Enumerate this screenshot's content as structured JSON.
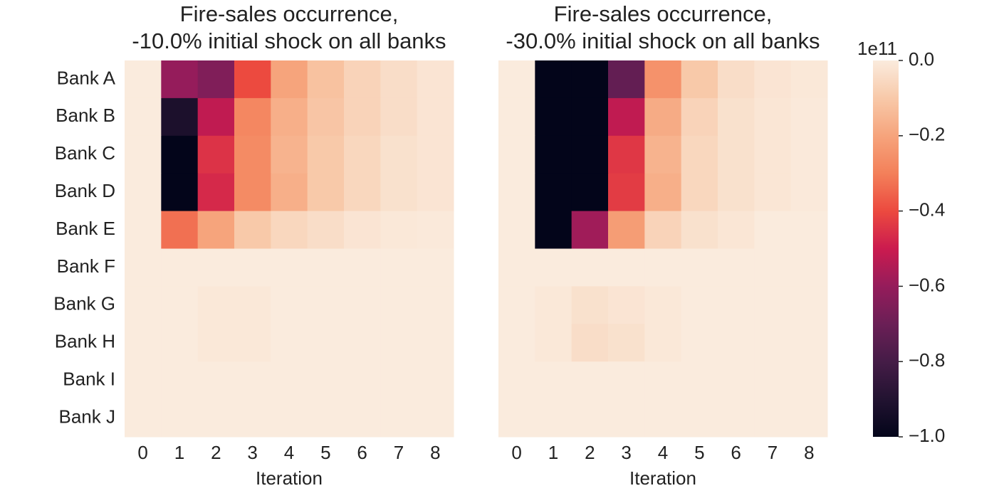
{
  "chart_data": [
    {
      "type": "heatmap",
      "title": [
        "Fire-sales occurrence,",
        "-10.0% initial shock on all banks"
      ],
      "xlabel": "Iteration",
      "x": [
        0,
        1,
        2,
        3,
        4,
        5,
        6,
        7,
        8
      ],
      "y": [
        "Bank A",
        "Bank B",
        "Bank C",
        "Bank D",
        "Bank E",
        "Bank F",
        "Bank G",
        "Bank H",
        "Bank I",
        "Bank J"
      ],
      "values": [
        [
          0,
          -0.6,
          -0.65,
          -0.4,
          -0.2,
          -0.12,
          -0.07,
          -0.04,
          -0.02
        ],
        [
          0,
          -0.92,
          -0.52,
          -0.28,
          -0.17,
          -0.11,
          -0.07,
          -0.04,
          -0.02
        ],
        [
          0,
          -1.0,
          -0.45,
          -0.27,
          -0.16,
          -0.1,
          -0.06,
          -0.03,
          -0.02
        ],
        [
          0,
          -1.0,
          -0.47,
          -0.27,
          -0.17,
          -0.1,
          -0.06,
          -0.03,
          -0.02
        ],
        [
          0,
          -0.33,
          -0.2,
          -0.1,
          -0.06,
          -0.04,
          -0.02,
          -0.01,
          -0.005
        ],
        [
          0,
          0,
          0,
          0,
          0,
          0,
          0,
          0,
          0
        ],
        [
          0,
          0,
          -0.01,
          -0.01,
          0,
          0,
          0,
          0,
          0
        ],
        [
          0,
          0,
          -0.01,
          -0.01,
          0,
          0,
          0,
          0,
          0
        ],
        [
          0,
          0,
          0,
          0,
          0,
          0,
          0,
          0,
          0
        ],
        [
          0,
          0,
          0,
          0,
          0,
          0,
          0,
          0,
          0
        ]
      ]
    },
    {
      "type": "heatmap",
      "title": [
        "Fire-sales occurrence,",
        "-30.0% initial shock on all banks"
      ],
      "xlabel": "Iteration",
      "x": [
        0,
        1,
        2,
        3,
        4,
        5,
        6,
        7,
        8
      ],
      "values": [
        [
          0,
          -1.0,
          -1.0,
          -0.72,
          -0.25,
          -0.1,
          -0.04,
          -0.02,
          -0.01
        ],
        [
          0,
          -1.0,
          -1.0,
          -0.52,
          -0.18,
          -0.07,
          -0.03,
          -0.015,
          -0.005
        ],
        [
          0,
          -1.0,
          -1.0,
          -0.44,
          -0.16,
          -0.06,
          -0.03,
          -0.015,
          -0.005
        ],
        [
          0,
          -1.0,
          -1.0,
          -0.43,
          -0.17,
          -0.06,
          -0.03,
          -0.015,
          -0.005
        ],
        [
          0,
          -1.0,
          -0.58,
          -0.22,
          -0.07,
          -0.03,
          -0.015,
          0,
          0
        ],
        [
          0,
          0,
          0,
          0,
          0,
          0,
          0,
          0,
          0
        ],
        [
          0,
          -0.01,
          -0.03,
          -0.02,
          -0.01,
          0,
          0,
          0,
          0
        ],
        [
          0,
          -0.01,
          -0.04,
          -0.03,
          -0.01,
          0,
          0,
          0,
          0
        ],
        [
          0,
          0,
          0,
          0,
          0,
          0,
          0,
          0,
          0
        ],
        [
          0,
          0,
          0,
          0,
          0,
          0,
          0,
          0,
          0
        ]
      ],
      "colorbar": {
        "lim": [
          -1,
          0
        ],
        "ticks": [
          {
            "value": 0,
            "label": "0.0"
          },
          {
            "value": -0.2,
            "label": "−0.2"
          },
          {
            "value": -0.4,
            "label": "−0.4"
          },
          {
            "value": -0.6,
            "label": "−0.6"
          },
          {
            "value": -0.8,
            "label": "−0.8"
          },
          {
            "value": -1,
            "label": "−1.0"
          }
        ],
        "offset_label": "1e11",
        "colormap": [
          "#03051a",
          "#221331",
          "#451c47",
          "#6b1f56",
          "#951c5b",
          "#cb1b4f",
          "#ec4a3f",
          "#f3805a",
          "#f6a47c",
          "#f8c9a9",
          "#faebdd"
        ]
      }
    }
  ]
}
